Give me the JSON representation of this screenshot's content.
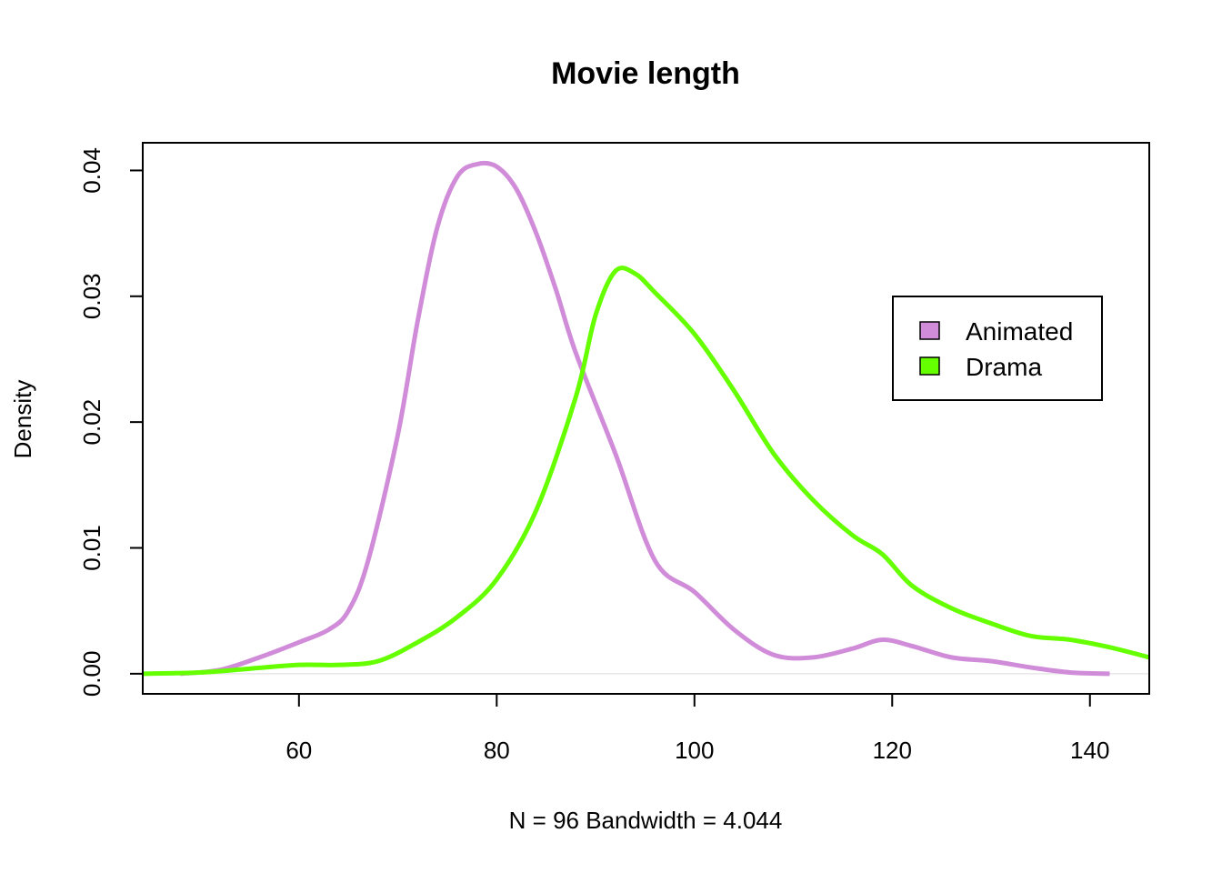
{
  "chart_data": {
    "type": "line",
    "title": "Movie length",
    "xlabel": "N = 96   Bandwidth = 4.044",
    "ylabel": "Density",
    "xlim": [
      44.2,
      146
    ],
    "ylim": [
      -0.0016,
      0.0422
    ],
    "x_ticks": [
      "60",
      "80",
      "100",
      "120",
      "140"
    ],
    "y_ticks": [
      "0.00",
      "0.01",
      "0.02",
      "0.03",
      "0.04"
    ],
    "legend_position": "right",
    "series": [
      {
        "name": "Animated",
        "color": "#d08cd8",
        "points": [
          [
            48,
            0
          ],
          [
            52,
            0.0003
          ],
          [
            56,
            0.0013
          ],
          [
            60,
            0.0025
          ],
          [
            63,
            0.0035
          ],
          [
            65,
            0.005
          ],
          [
            67,
            0.009
          ],
          [
            70,
            0.019
          ],
          [
            72,
            0.028
          ],
          [
            74,
            0.0355
          ],
          [
            76,
            0.0395
          ],
          [
            78,
            0.0405
          ],
          [
            80,
            0.0403
          ],
          [
            82,
            0.0385
          ],
          [
            84,
            0.035
          ],
          [
            86,
            0.0305
          ],
          [
            88,
            0.0255
          ],
          [
            92,
            0.0175
          ],
          [
            96,
            0.009
          ],
          [
            100,
            0.0065
          ],
          [
            104,
            0.0035
          ],
          [
            108,
            0.0015
          ],
          [
            112,
            0.0013
          ],
          [
            116,
            0.002
          ],
          [
            119,
            0.0027
          ],
          [
            122,
            0.0022
          ],
          [
            126,
            0.0013
          ],
          [
            130,
            0.001
          ],
          [
            134,
            0.0005
          ],
          [
            138,
            0.0001
          ],
          [
            142,
            0
          ]
        ]
      },
      {
        "name": "Drama",
        "color": "#66ff00",
        "points": [
          [
            44.2,
            0
          ],
          [
            50,
            0.0001
          ],
          [
            55,
            0.0004
          ],
          [
            60,
            0.0007
          ],
          [
            64,
            0.0007
          ],
          [
            68,
            0.001
          ],
          [
            72,
            0.0025
          ],
          [
            76,
            0.0045
          ],
          [
            80,
            0.0075
          ],
          [
            84,
            0.013
          ],
          [
            88,
            0.022
          ],
          [
            90,
            0.0285
          ],
          [
            92,
            0.032
          ],
          [
            94,
            0.0318
          ],
          [
            96,
            0.0303
          ],
          [
            100,
            0.027
          ],
          [
            104,
            0.0225
          ],
          [
            108,
            0.0175
          ],
          [
            112,
            0.0138
          ],
          [
            116,
            0.011
          ],
          [
            119,
            0.0095
          ],
          [
            122,
            0.007
          ],
          [
            126,
            0.0052
          ],
          [
            130,
            0.004
          ],
          [
            134,
            0.003
          ],
          [
            138,
            0.0027
          ],
          [
            142,
            0.0021
          ],
          [
            146,
            0.0013
          ]
        ]
      }
    ]
  }
}
